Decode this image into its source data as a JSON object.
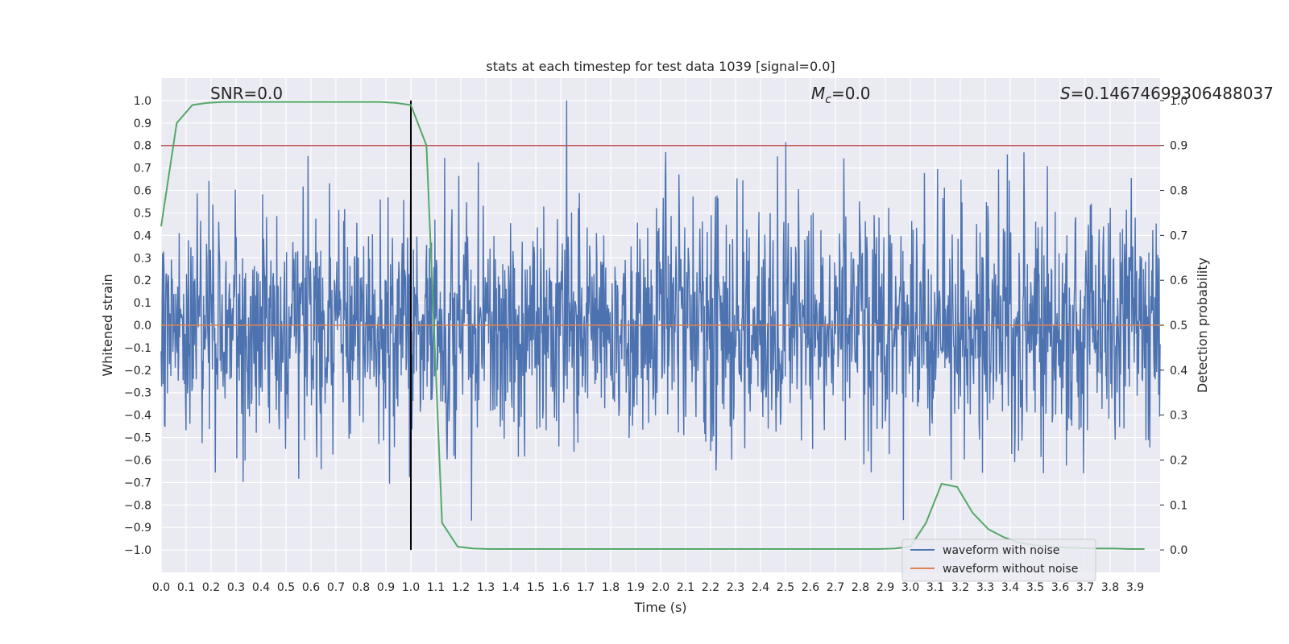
{
  "chart_data": {
    "type": "line",
    "title": "stats at each timestep for test data 1039 [signal=0.0]",
    "xlabel": "Time (s)",
    "ylabel": "Whitened strain",
    "y2label": "Detection probability",
    "xlim": [
      0.0,
      4.0
    ],
    "ylim": [
      -1.1,
      1.1
    ],
    "y2lim": [
      -0.05,
      1.05
    ],
    "x_ticks": [
      0.0,
      0.1,
      0.2,
      0.3,
      0.4,
      0.5,
      0.6,
      0.7,
      0.8,
      0.9,
      1.0,
      1.1,
      1.2,
      1.3,
      1.4,
      1.5,
      1.6,
      1.7,
      1.8,
      1.9,
      2.0,
      2.1,
      2.2,
      2.3,
      2.4,
      2.5,
      2.6,
      2.7,
      2.8,
      2.9,
      3.0,
      3.1,
      3.2,
      3.3,
      3.4,
      3.5,
      3.6,
      3.7,
      3.8,
      3.9
    ],
    "x_tick_labels": [
      "0.0",
      "0.1",
      "0.2",
      "0.3",
      "0.4",
      "0.5",
      "0.6",
      "0.7",
      "0.8",
      "0.9",
      "1.0",
      "1.1",
      "1.2",
      "1.3",
      "1.4",
      "1.5",
      "1.6",
      "1.7",
      "1.8",
      "1.9",
      "2.0",
      "2.1",
      "2.2",
      "2.3",
      "2.4",
      "2.5",
      "2.6",
      "2.7",
      "2.8",
      "2.9",
      "3.0",
      "3.1",
      "3.2",
      "3.3",
      "3.4",
      "3.5",
      "3.6",
      "3.7",
      "3.8",
      "3.9"
    ],
    "y_ticks": [
      1.0,
      0.9,
      0.8,
      0.7,
      0.6,
      0.5,
      0.4,
      0.3,
      0.2,
      0.1,
      0.0,
      -0.1,
      -0.2,
      -0.3,
      -0.4,
      -0.5,
      -0.6,
      -0.7,
      -0.8,
      -0.9,
      -1.0
    ],
    "y_tick_labels": [
      "1.0",
      "0.9",
      "0.8",
      "0.7",
      "0.6",
      "0.5",
      "0.4",
      "0.3",
      "0.2",
      "0.1",
      "0.0",
      "−0.1",
      "−0.2",
      "−0.3",
      "−0.4",
      "−0.5",
      "−0.6",
      "−0.7",
      "−0.8",
      "−0.9",
      "−1.0"
    ],
    "y2_ticks": [
      1.0,
      0.9,
      0.8,
      0.7,
      0.6,
      0.5,
      0.4,
      0.3,
      0.2,
      0.1,
      0.0
    ],
    "y2_tick_labels": [
      "1.0",
      "0.9",
      "0.8",
      "0.7",
      "0.6",
      "0.5",
      "0.4",
      "0.3",
      "0.2",
      "0.1",
      "0.0"
    ],
    "grid": true,
    "legend_position": "lower-right",
    "annotations": {
      "snr": "SNR=0.0",
      "mc_symbol": "M",
      "mc_subscript": "c",
      "mc_value": "=0.0",
      "s_symbol": "S",
      "s_value": "=0.14674699306488037"
    },
    "series": [
      {
        "name": "waveform with noise",
        "color": "#4c72b0",
        "axis": "left",
        "x_range": [
          0.0,
          4.0
        ],
        "n_samples": 2048,
        "value_range": [
          -0.95,
          1.0
        ]
      },
      {
        "name": "waveform without noise",
        "color": "#dd8452",
        "axis": "left",
        "x": [
          0.0,
          4.0
        ],
        "y": [
          0.0,
          0.0
        ]
      },
      {
        "color": "#55a868",
        "axis": "right",
        "x": [
          0.0,
          0.0625,
          0.125,
          0.1875,
          0.25,
          0.3125,
          0.375,
          0.4375,
          0.5,
          0.5625,
          0.625,
          0.6875,
          0.75,
          0.8125,
          0.875,
          0.9375,
          1.0,
          1.0625,
          1.125,
          1.1875,
          1.25,
          1.3125,
          1.375,
          1.4375,
          1.5,
          1.5625,
          1.625,
          1.6875,
          1.75,
          1.8125,
          1.875,
          1.9375,
          2.0,
          2.0625,
          2.125,
          2.1875,
          2.25,
          2.3125,
          2.375,
          2.4375,
          2.5,
          2.5625,
          2.625,
          2.6875,
          2.75,
          2.8125,
          2.875,
          2.9375,
          3.0,
          3.0625,
          3.125,
          3.1875,
          3.25,
          3.3125,
          3.375,
          3.4375,
          3.5,
          3.5625,
          3.625,
          3.6875,
          3.75,
          3.8125,
          3.875,
          3.9375
        ],
        "y": [
          0.72,
          0.95,
          0.99,
          0.995,
          0.997,
          0.997,
          0.997,
          0.997,
          0.997,
          0.997,
          0.997,
          0.997,
          0.997,
          0.997,
          0.997,
          0.995,
          0.99,
          0.9,
          0.06,
          0.007,
          0.003,
          0.002,
          0.002,
          0.002,
          0.002,
          0.002,
          0.002,
          0.002,
          0.002,
          0.002,
          0.002,
          0.002,
          0.002,
          0.002,
          0.002,
          0.002,
          0.002,
          0.002,
          0.002,
          0.002,
          0.002,
          0.002,
          0.002,
          0.002,
          0.002,
          0.002,
          0.002,
          0.003,
          0.007,
          0.06,
          0.147,
          0.14,
          0.082,
          0.046,
          0.028,
          0.016,
          0.01,
          0.007,
          0.005,
          0.004,
          0.003,
          0.003,
          0.002,
          0.002
        ]
      }
    ],
    "hlines": [
      {
        "y": 0.8,
        "color": "#c44e52",
        "axis": "left"
      }
    ],
    "vlines": [
      {
        "x": 1.0,
        "ymin": -1.0,
        "ymax": 1.0,
        "color": "#000000",
        "axis": "left"
      }
    ]
  }
}
